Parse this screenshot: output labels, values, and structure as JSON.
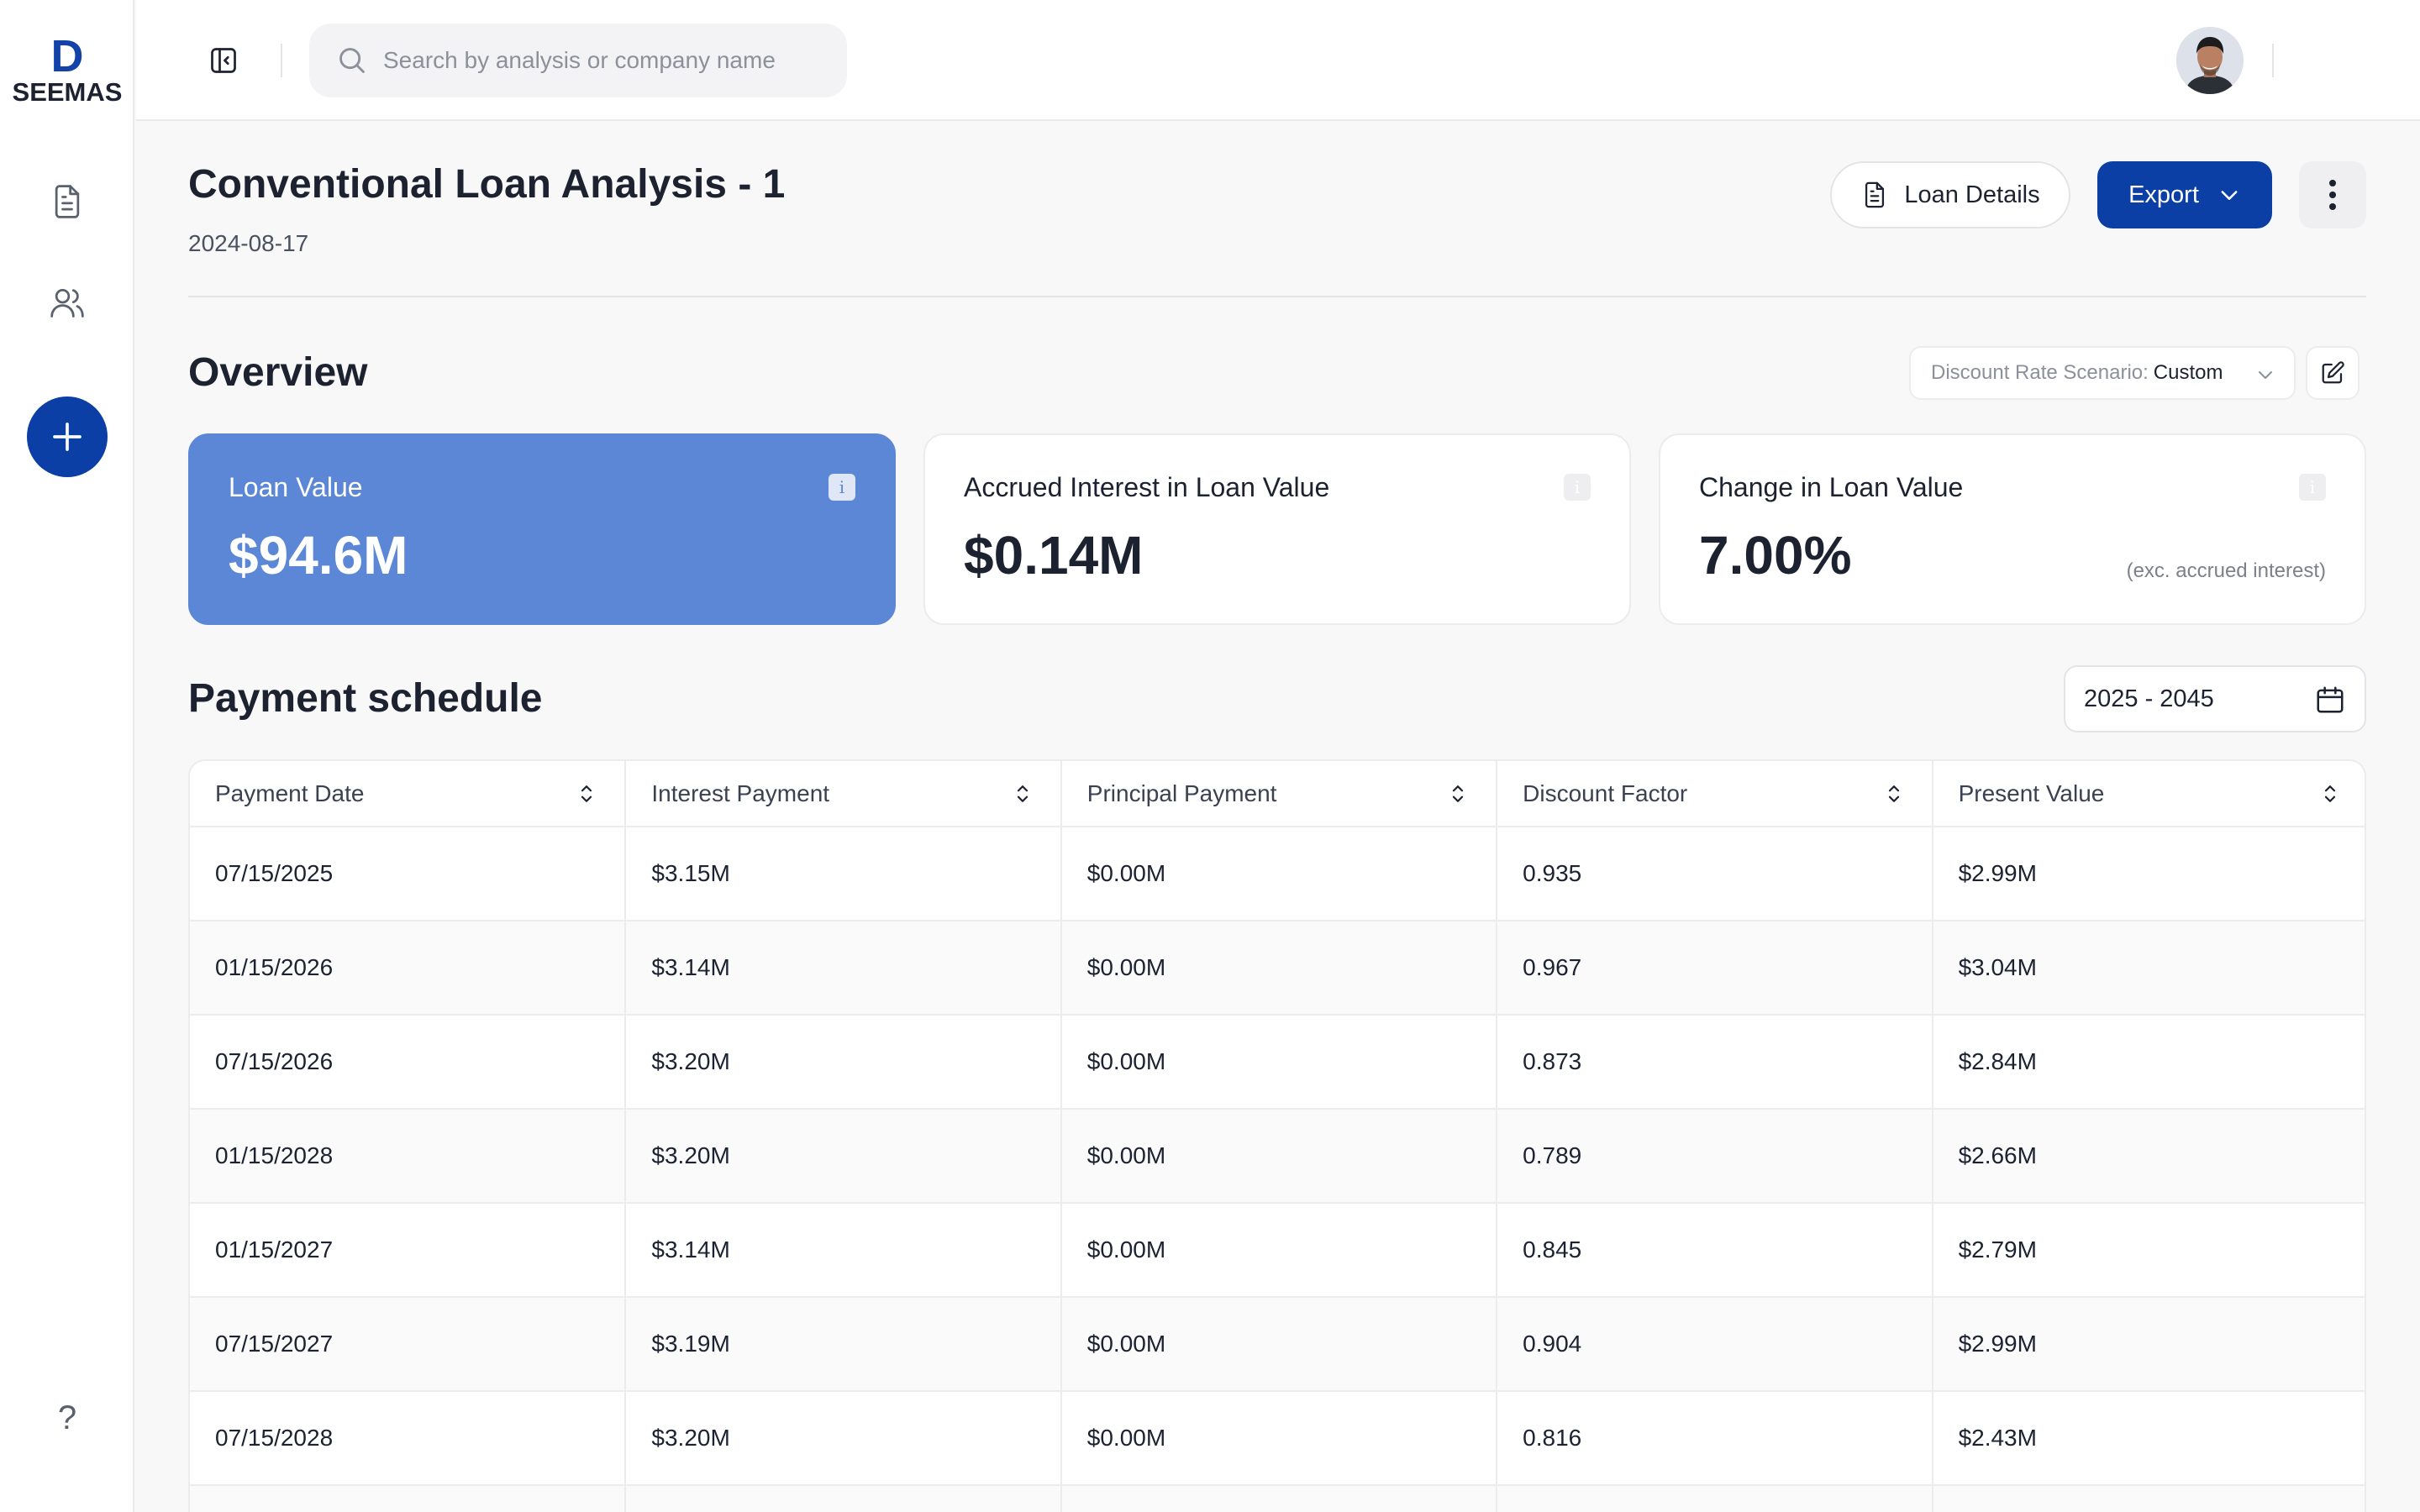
{
  "app": {
    "logo_text": "SEEMAS"
  },
  "header": {
    "search_placeholder": "Search by analysis or company name"
  },
  "page": {
    "title": "Conventional Loan Analysis - 1",
    "date": "2024-08-17",
    "loan_details_label": "Loan Details",
    "export_label": "Export"
  },
  "overview": {
    "title": "Overview",
    "scenario_label": "Discount Rate Scenario:",
    "scenario_value": "Custom",
    "cards": [
      {
        "label": "Loan Value",
        "value": "$94.6M"
      },
      {
        "label": "Accrued Interest in Loan Value",
        "value": "$0.14M"
      },
      {
        "label": "Change in Loan Value",
        "value": "7.00%",
        "note": "(exc. accrued interest)"
      }
    ]
  },
  "schedule": {
    "title": "Payment schedule",
    "range": "2025 - 2045",
    "columns": [
      "Payment Date",
      "Interest Payment",
      "Principal Payment",
      "Discount Factor",
      "Present Value"
    ],
    "rows": [
      [
        "07/15/2025",
        "$3.15M",
        "$0.00M",
        "0.935",
        "$2.99M"
      ],
      [
        "01/15/2026",
        "$3.14M",
        "$0.00M",
        "0.967",
        "$3.04M"
      ],
      [
        "07/15/2026",
        "$3.20M",
        "$0.00M",
        "0.873",
        "$2.84M"
      ],
      [
        "01/15/2028",
        "$3.20M",
        "$0.00M",
        "0.789",
        "$2.66M"
      ],
      [
        "01/15/2027",
        "$3.14M",
        "$0.00M",
        "0.845",
        "$2.79M"
      ],
      [
        "07/15/2027",
        "$3.19M",
        "$0.00M",
        "0.904",
        "$2.99M"
      ],
      [
        "07/15/2028",
        "$3.20M",
        "$0.00M",
        "0.816",
        "$2.43M"
      ]
    ]
  },
  "colors": {
    "primary": "#0b3fa6",
    "card_highlight": "#5b87d6"
  },
  "icons": {
    "sidebar": [
      "document-icon",
      "users-icon",
      "plus-icon",
      "help-icon"
    ],
    "header": [
      "sidebar-toggle-icon",
      "search-icon",
      "avatar",
      "assistant-orb-icon"
    ]
  }
}
